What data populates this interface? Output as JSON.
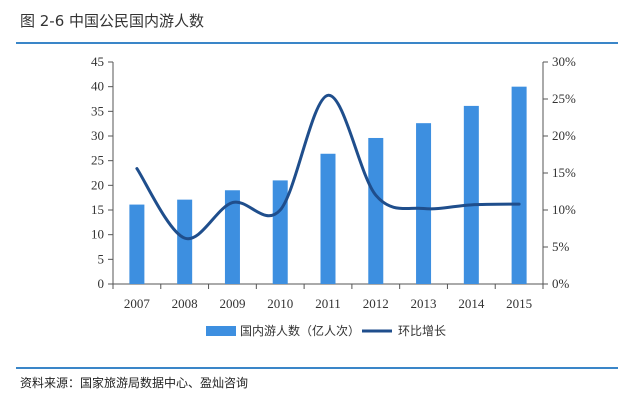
{
  "figure": {
    "title": "图 2-6 中国公民国内游人数",
    "source": "资料来源：国家旅游局数据中心、盈灿咨询"
  },
  "chart_data": {
    "type": "bar",
    "categories": [
      "2007",
      "2008",
      "2009",
      "2010",
      "2011",
      "2012",
      "2013",
      "2014",
      "2015"
    ],
    "series": [
      {
        "name": "国内游人数（亿人次）",
        "type": "bar",
        "axis": "left",
        "values": [
          16.1,
          17.1,
          19.0,
          21.0,
          26.4,
          29.6,
          32.6,
          36.1,
          40.0
        ]
      },
      {
        "name": "环比增长",
        "type": "line",
        "axis": "right",
        "values": [
          15.6,
          6.2,
          11.0,
          10.0,
          25.5,
          12.0,
          10.2,
          10.7,
          10.8
        ]
      }
    ],
    "y_left": {
      "ylim": [
        0,
        45
      ],
      "ticks": [
        "0",
        "5",
        "10",
        "15",
        "20",
        "25",
        "30",
        "35",
        "40",
        "45"
      ]
    },
    "y_right": {
      "ylim": [
        0,
        30
      ],
      "ticks": [
        "0%",
        "5%",
        "10%",
        "15%",
        "20%",
        "25%",
        "30%"
      ]
    },
    "colors": {
      "bar": "#3d8fe0",
      "line": "#1f4e8c",
      "axis": "#555555",
      "rule": "#3a86c8"
    },
    "legend_position": "bottom",
    "grid": false
  }
}
